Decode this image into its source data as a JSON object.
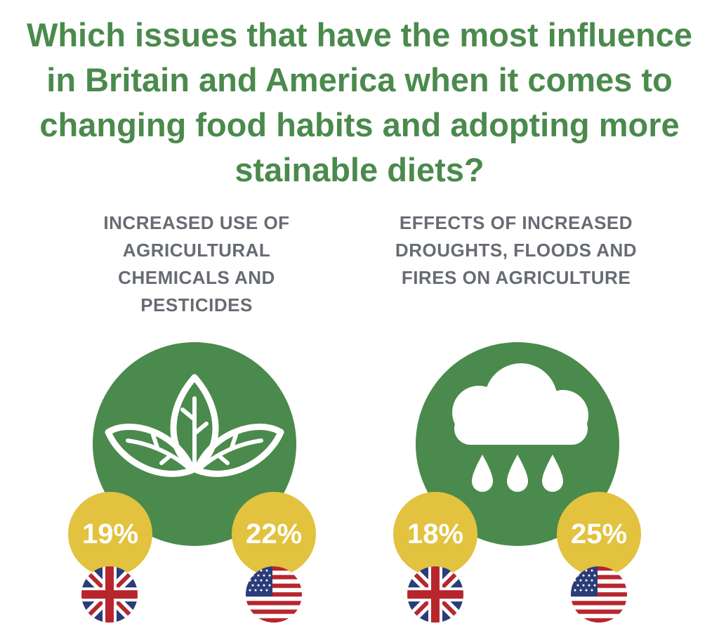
{
  "title": "Which issues that have the most influence in Britain and America when it comes to changing food habits and adopting more stainable diets?",
  "colors": {
    "title": "#4a8a4c",
    "circle": "#4a8a4c",
    "badge": "#e2c23e",
    "panel_title": "#676b73"
  },
  "panels": [
    {
      "title": "INCREASED USE OF AGRICULTURAL CHEMICALS AND PESTICIDES",
      "icon": "leaves-icon",
      "uk_value": "19%",
      "us_value": "22%"
    },
    {
      "title": "EFFECTS OF INCREASED DROUGHTS, FLOODS AND FIRES ON AGRICULTURE",
      "icon": "rain-cloud-icon",
      "uk_value": "18%",
      "us_value": "25%"
    }
  ]
}
